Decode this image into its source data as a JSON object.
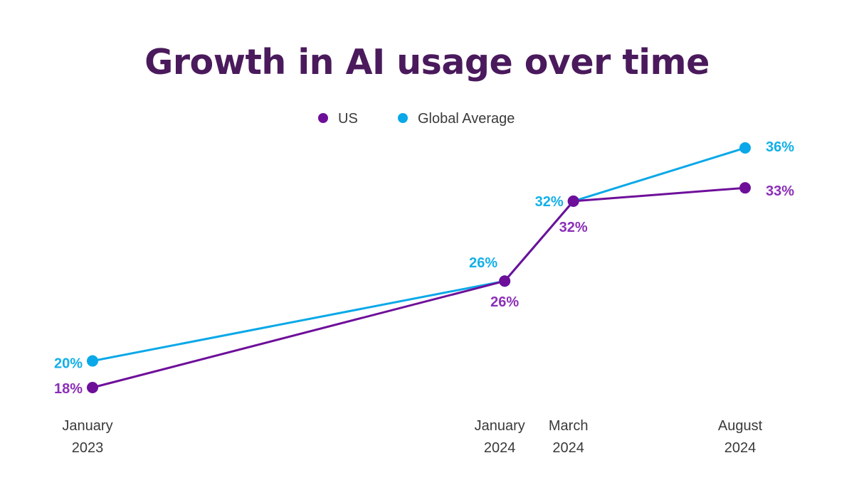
{
  "colors": {
    "title": "#4a1a5c",
    "us": "#6e0f9a",
    "us_label": "#8b2fb8",
    "global": "#0aa8e8",
    "global_label": "#12b0e8"
  },
  "chart_data": {
    "type": "line",
    "title": "Growth in AI usage over time",
    "xlabel": "",
    "ylabel": "",
    "ylim": [
      16,
      38
    ],
    "grid": false,
    "legend_position": "top-center",
    "x": [
      "2023-01",
      "2024-01",
      "2024-03",
      "2024-08"
    ],
    "x_tick_labels": [
      [
        "January",
        "2023"
      ],
      [
        "January",
        "2024"
      ],
      [
        "March",
        "2024"
      ],
      [
        "August",
        "2024"
      ]
    ],
    "series": [
      {
        "name": "US",
        "values": [
          18,
          26,
          32,
          33
        ],
        "labels": [
          "18%",
          "26%",
          "32%",
          "33%"
        ]
      },
      {
        "name": "Global Average",
        "values": [
          20,
          26,
          32,
          36
        ],
        "labels": [
          "20%",
          "26%",
          "32%",
          "36%"
        ]
      }
    ]
  }
}
